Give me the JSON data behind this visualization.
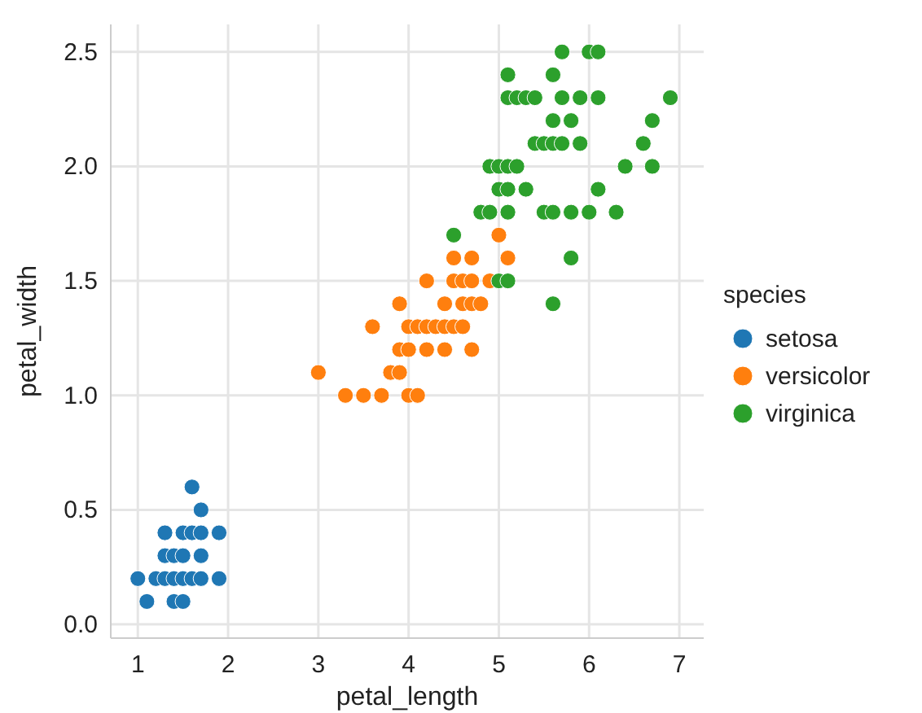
{
  "chart_data": {
    "type": "scatter",
    "xlabel": "petal_length",
    "ylabel": "petal_width",
    "legend_title": "species",
    "legend": "right",
    "grid": true,
    "marker": "circle",
    "xlim": [
      0.7,
      7.27
    ],
    "xticks": [
      1,
      2,
      3,
      4,
      5,
      6,
      7
    ],
    "ylim": [
      -0.06,
      2.62
    ],
    "yticks": [
      {
        "value": 0,
        "label": "0.0"
      },
      {
        "value": 0.5,
        "label": "0.5"
      },
      {
        "value": 1,
        "label": "1.0"
      },
      {
        "value": 1.5,
        "label": "1.5"
      },
      {
        "value": 2,
        "label": "2.0"
      },
      {
        "value": 2.5,
        "label": "2.5"
      }
    ],
    "series": [
      {
        "name": "setosa",
        "color": "#1f77b4",
        "x": [
          1.1,
          1.4,
          1.5,
          1.0,
          1.2,
          1.3,
          1.4,
          1.5,
          1.6,
          1.7,
          1.9,
          1.3,
          1.4,
          1.5,
          1.7,
          1.3,
          1.5,
          1.6,
          1.7,
          1.9,
          1.7,
          1.6
        ],
        "values": [
          0.1,
          0.1,
          0.1,
          0.2,
          0.2,
          0.2,
          0.2,
          0.2,
          0.2,
          0.2,
          0.2,
          0.3,
          0.3,
          0.3,
          0.3,
          0.4,
          0.4,
          0.4,
          0.4,
          0.4,
          0.5,
          0.6
        ]
      },
      {
        "name": "versicolor",
        "color": "#ff7f0e",
        "x": [
          3.3,
          3.5,
          3.7,
          4.0,
          4.1,
          3.0,
          3.8,
          3.9,
          3.9,
          4.0,
          4.2,
          4.4,
          4.7,
          3.6,
          4.0,
          4.1,
          4.2,
          4.3,
          4.4,
          4.5,
          4.6,
          3.9,
          4.4,
          4.6,
          4.7,
          4.8,
          4.2,
          4.5,
          4.6,
          4.7,
          4.9,
          4.5,
          4.7,
          5.1,
          5.0
        ],
        "values": [
          1.0,
          1.0,
          1.0,
          1.0,
          1.0,
          1.1,
          1.1,
          1.1,
          1.2,
          1.2,
          1.2,
          1.2,
          1.2,
          1.3,
          1.3,
          1.3,
          1.3,
          1.3,
          1.3,
          1.3,
          1.3,
          1.4,
          1.4,
          1.4,
          1.4,
          1.4,
          1.5,
          1.5,
          1.5,
          1.5,
          1.5,
          1.6,
          1.6,
          1.6,
          1.7
        ]
      },
      {
        "name": "virginica",
        "color": "#2ca02c",
        "x": [
          5.6,
          5.0,
          5.1,
          5.8,
          4.5,
          4.8,
          4.9,
          5.1,
          5.5,
          5.6,
          5.8,
          6.0,
          6.3,
          5.0,
          5.1,
          5.3,
          6.1,
          4.9,
          5.0,
          5.1,
          5.2,
          6.4,
          6.7,
          5.4,
          5.5,
          5.6,
          5.7,
          5.9,
          6.6,
          5.6,
          5.8,
          6.7,
          5.1,
          5.2,
          5.3,
          5.4,
          5.7,
          5.9,
          6.1,
          6.9,
          5.1,
          5.6,
          5.7,
          6.0,
          6.1
        ],
        "values": [
          1.4,
          1.5,
          1.5,
          1.6,
          1.7,
          1.8,
          1.8,
          1.8,
          1.8,
          1.8,
          1.8,
          1.8,
          1.8,
          1.9,
          1.9,
          1.9,
          1.9,
          2.0,
          2.0,
          2.0,
          2.0,
          2.0,
          2.0,
          2.1,
          2.1,
          2.1,
          2.1,
          2.1,
          2.1,
          2.2,
          2.2,
          2.2,
          2.3,
          2.3,
          2.3,
          2.3,
          2.3,
          2.3,
          2.3,
          2.3,
          2.4,
          2.4,
          2.5,
          2.5,
          2.5
        ]
      }
    ]
  }
}
